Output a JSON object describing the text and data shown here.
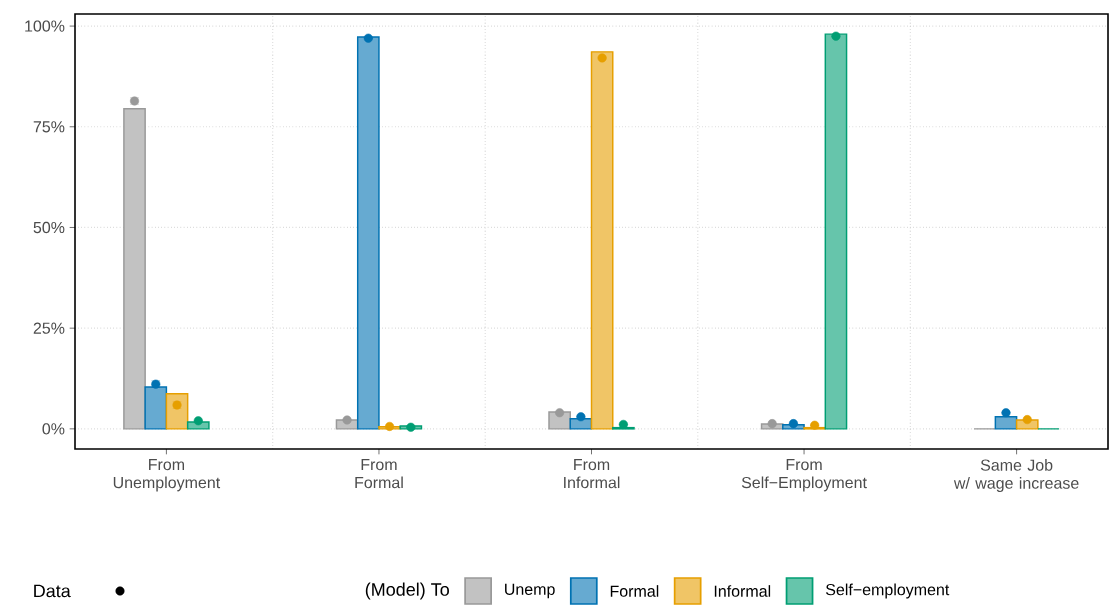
{
  "chart_data": {
    "type": "bar",
    "categories": [
      "From\nUnemployment",
      "From\nFormal",
      "From\nInformal",
      "From\nSelf−Employment",
      "Same Job\nw/ wage increase"
    ],
    "series": [
      {
        "name": "Unemp",
        "color": "#999999",
        "values": [
          79.5,
          2.2,
          4.2,
          1.2,
          0
        ]
      },
      {
        "name": "Formal",
        "color": "#0072B2",
        "values": [
          10.4,
          97.3,
          2.5,
          1.0,
          3.0
        ]
      },
      {
        "name": "Informal",
        "color": "#E69F00",
        "values": [
          8.7,
          0.5,
          93.6,
          0.3,
          2.2
        ]
      },
      {
        "name": "Self−employment",
        "color": "#009E73",
        "values": [
          1.7,
          0.7,
          0.3,
          98.0,
          0
        ]
      },
      {
        "type": "scatter",
        "color": "#999999",
        "values": [
          81.4,
          2.2,
          4.0,
          1.3,
          null
        ],
        "errors": [
          0.8,
          null,
          null,
          null,
          null
        ]
      },
      {
        "type": "scatter",
        "color": "#0072B2",
        "values": [
          11.1,
          97.0,
          3.0,
          1.3,
          4.0
        ],
        "errors": [
          0.8,
          null,
          null,
          null,
          null
        ]
      },
      {
        "type": "scatter",
        "color": "#E69F00",
        "values": [
          5.9,
          0.6,
          92.1,
          0.9,
          2.3
        ],
        "errors": [
          0.8,
          null,
          null,
          null,
          null
        ]
      },
      {
        "type": "scatter",
        "color": "#009E73",
        "values": [
          2.0,
          0.4,
          1.1,
          97.5,
          null
        ]
      }
    ],
    "ylim": [
      -5,
      103
    ],
    "yticks": [
      {
        "value": 0,
        "label": "0%"
      },
      {
        "value": 25,
        "label": "25%"
      },
      {
        "value": 50,
        "label": "50%"
      },
      {
        "value": 75,
        "label": "75%"
      },
      {
        "value": 100,
        "label": "100%"
      }
    ],
    "grid": true,
    "legend": "bottom",
    "legend_title": "(Model) To",
    "annotations": [
      "Data"
    ],
    "marker": "circle"
  }
}
